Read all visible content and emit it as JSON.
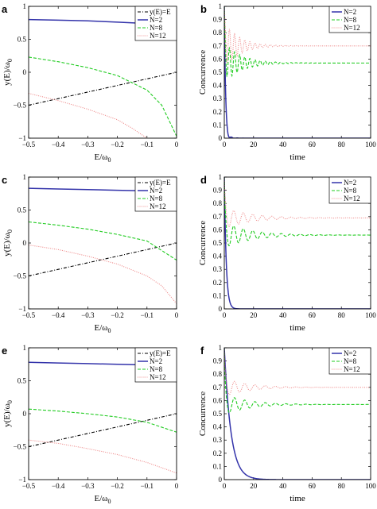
{
  "chart_data": [
    {
      "panel": "a",
      "type": "line",
      "xlabel": "E/ω",
      "xlabel_sub": "0",
      "ylabel": "y(E)/ω",
      "ylabel_sub": "0",
      "xlim": [
        -0.5,
        0
      ],
      "ylim": [
        -1,
        1
      ],
      "xticks": [
        -0.5,
        -0.4,
        -0.3,
        -0.2,
        -0.1,
        0
      ],
      "yticks": [
        -1,
        -0.5,
        0,
        0.5,
        1
      ],
      "xtick_labels": [
        "−0.5",
        "−0.4",
        "−0.3",
        "−0.2",
        "−0.1",
        "0"
      ],
      "ytick_labels": [
        "−1",
        "−0.5",
        "0",
        "0.5",
        "1"
      ],
      "legend_position": "top-right",
      "grid": false,
      "series": [
        {
          "name": "y(E)=E",
          "color": "#000000",
          "style": "dashdot",
          "x": [
            -0.5,
            0
          ],
          "y": [
            -0.5,
            0
          ]
        },
        {
          "name": "N=2",
          "color": "#3333aa",
          "style": "solid",
          "x": [
            -0.5,
            -0.4,
            -0.3,
            -0.2,
            -0.1,
            -0.05,
            0
          ],
          "y": [
            0.8,
            0.79,
            0.78,
            0.76,
            0.74,
            0.72,
            0.69
          ]
        },
        {
          "name": "N=8",
          "color": "#22cc22",
          "style": "dashed",
          "x": [
            -0.5,
            -0.4,
            -0.3,
            -0.2,
            -0.1,
            -0.05,
            0
          ],
          "y": [
            0.23,
            0.16,
            0.07,
            -0.05,
            -0.27,
            -0.5,
            -0.97
          ]
        },
        {
          "name": "N=12",
          "color": "#ee8888",
          "style": "dotted",
          "x": [
            -0.5,
            -0.4,
            -0.3,
            -0.2,
            -0.15,
            -0.1
          ],
          "y": [
            -0.32,
            -0.43,
            -0.56,
            -0.72,
            -0.85,
            -1.0
          ]
        }
      ]
    },
    {
      "panel": "b",
      "type": "line",
      "xlabel": "time",
      "ylabel": "Concurrence",
      "xlim": [
        0,
        100
      ],
      "ylim": [
        0,
        1
      ],
      "xticks": [
        0,
        20,
        40,
        60,
        80,
        100
      ],
      "yticks": [
        0,
        0.1,
        0.2,
        0.3,
        0.4,
        0.5,
        0.6,
        0.7,
        0.8,
        0.9,
        1
      ],
      "xtick_labels": [
        "0",
        "20",
        "40",
        "60",
        "80",
        "100"
      ],
      "ytick_labels": [
        "0",
        "0.1",
        "0.2",
        "0.3",
        "0.4",
        "0.5",
        "0.6",
        "0.7",
        "0.8",
        "0.9",
        "1"
      ],
      "legend_position": "top-right",
      "grid": false,
      "series": [
        {
          "name": "N=2",
          "color": "#3333aa",
          "style": "solid",
          "model": "decay",
          "start": 1.0,
          "level": 0,
          "tau": 0.8,
          "amp": 0.03,
          "period": 4,
          "damp": 3
        },
        {
          "name": "N=8",
          "color": "#22cc22",
          "style": "dashed",
          "model": "oscill",
          "start": 1.0,
          "level": 0.57,
          "amp": 0.15,
          "period": 3.5,
          "damp": 12
        },
        {
          "name": "N=12",
          "color": "#ee8888",
          "style": "dotted",
          "model": "oscill",
          "start": 1.0,
          "level": 0.7,
          "amp": 0.18,
          "period": 3.5,
          "damp": 10
        }
      ]
    },
    {
      "panel": "c",
      "type": "line",
      "xlabel": "E/ω",
      "xlabel_sub": "0",
      "ylabel": "y(E)/ω",
      "ylabel_sub": "0",
      "xlim": [
        -0.5,
        0
      ],
      "ylim": [
        -1,
        1
      ],
      "xticks": [
        -0.5,
        -0.4,
        -0.3,
        -0.2,
        -0.1,
        0
      ],
      "yticks": [
        -1,
        -0.5,
        0,
        0.5,
        1
      ],
      "xtick_labels": [
        "−0.5",
        "−0.4",
        "−0.3",
        "−0.2",
        "−0.1",
        "0"
      ],
      "ytick_labels": [
        "−1",
        "−0.5",
        "0",
        "0.5",
        "1"
      ],
      "legend_position": "top-right",
      "grid": false,
      "series": [
        {
          "name": "y(E)=E",
          "color": "#000000",
          "style": "dashdot",
          "x": [
            -0.5,
            0
          ],
          "y": [
            -0.5,
            0
          ]
        },
        {
          "name": "N=2",
          "color": "#3333aa",
          "style": "solid",
          "x": [
            -0.5,
            -0.4,
            -0.3,
            -0.2,
            -0.1,
            0
          ],
          "y": [
            0.83,
            0.82,
            0.81,
            0.8,
            0.79,
            0.77
          ]
        },
        {
          "name": "N=8",
          "color": "#22cc22",
          "style": "dashed",
          "x": [
            -0.5,
            -0.4,
            -0.3,
            -0.2,
            -0.1,
            0
          ],
          "y": [
            0.32,
            0.27,
            0.21,
            0.13,
            0.03,
            -0.26
          ]
        },
        {
          "name": "N=12",
          "color": "#ee8888",
          "style": "dotted",
          "x": [
            -0.5,
            -0.4,
            -0.3,
            -0.2,
            -0.1,
            -0.05,
            0
          ],
          "y": [
            -0.03,
            -0.1,
            -0.2,
            -0.32,
            -0.5,
            -0.65,
            -0.92
          ]
        }
      ]
    },
    {
      "panel": "d",
      "type": "line",
      "xlabel": "time",
      "ylabel": "Concurrence",
      "xlim": [
        0,
        100
      ],
      "ylim": [
        0,
        1
      ],
      "xticks": [
        0,
        20,
        40,
        60,
        80,
        100
      ],
      "yticks": [
        0,
        0.1,
        0.2,
        0.3,
        0.4,
        0.5,
        0.6,
        0.7,
        0.8,
        0.9,
        1
      ],
      "xtick_labels": [
        "0",
        "20",
        "40",
        "60",
        "80",
        "100"
      ],
      "ytick_labels": [
        "0",
        "0.1",
        "0.2",
        "0.3",
        "0.4",
        "0.5",
        "0.6",
        "0.7",
        "0.8",
        "0.9",
        "1"
      ],
      "legend_position": "top-right",
      "grid": false,
      "series": [
        {
          "name": "N=2",
          "color": "#3333aa",
          "style": "solid",
          "model": "decay",
          "start": 1.0,
          "level": 0,
          "tau": 1.3,
          "amp": 0,
          "period": 4,
          "damp": 3
        },
        {
          "name": "N=8",
          "color": "#22cc22",
          "style": "dashed",
          "model": "oscill",
          "start": 1.0,
          "level": 0.56,
          "amp": 0.1,
          "period": 6.5,
          "damp": 18
        },
        {
          "name": "N=12",
          "color": "#ee8888",
          "style": "dotted",
          "model": "oscill",
          "start": 1.0,
          "level": 0.69,
          "amp": 0.08,
          "period": 6.5,
          "damp": 18
        }
      ]
    },
    {
      "panel": "e",
      "type": "line",
      "xlabel": "E/ω",
      "xlabel_sub": "0",
      "ylabel": "y(E)/ω",
      "ylabel_sub": "0",
      "xlim": [
        -0.5,
        0
      ],
      "ylim": [
        -1,
        1
      ],
      "xticks": [
        -0.5,
        -0.4,
        -0.3,
        -0.2,
        -0.1,
        0
      ],
      "yticks": [
        -1,
        -0.5,
        0,
        0.5,
        1
      ],
      "xtick_labels": [
        "−0.5",
        "−0.4",
        "−0.3",
        "−0.2",
        "−0.1",
        "0"
      ],
      "ytick_labels": [
        "−1",
        "−0.5",
        "0",
        "0.5",
        "1"
      ],
      "legend_position": "top-right",
      "grid": false,
      "series": [
        {
          "name": "y(E)=E",
          "color": "#000000",
          "style": "dashdot",
          "x": [
            -0.5,
            0
          ],
          "y": [
            -0.5,
            0
          ]
        },
        {
          "name": "N=2",
          "color": "#3333aa",
          "style": "solid",
          "x": [
            -0.5,
            -0.4,
            -0.3,
            -0.2,
            -0.1,
            0
          ],
          "y": [
            0.78,
            0.77,
            0.76,
            0.75,
            0.74,
            0.72
          ]
        },
        {
          "name": "N=8",
          "color": "#22cc22",
          "style": "dashed",
          "x": [
            -0.5,
            -0.4,
            -0.3,
            -0.2,
            -0.1,
            0
          ],
          "y": [
            0.07,
            0.04,
            0.0,
            -0.05,
            -0.13,
            -0.28
          ]
        },
        {
          "name": "N=12",
          "color": "#ee8888",
          "style": "dotted",
          "x": [
            -0.5,
            -0.4,
            -0.3,
            -0.2,
            -0.1,
            0
          ],
          "y": [
            -0.4,
            -0.45,
            -0.53,
            -0.62,
            -0.74,
            -0.9
          ]
        }
      ]
    },
    {
      "panel": "f",
      "type": "line",
      "xlabel": "time",
      "ylabel": "Concurrence",
      "xlim": [
        0,
        100
      ],
      "ylim": [
        0,
        1
      ],
      "xticks": [
        0,
        20,
        40,
        60,
        80,
        100
      ],
      "yticks": [
        0,
        0.1,
        0.2,
        0.3,
        0.4,
        0.5,
        0.6,
        0.7,
        0.8,
        0.9,
        1
      ],
      "xtick_labels": [
        "0",
        "20",
        "40",
        "60",
        "80",
        "100"
      ],
      "ytick_labels": [
        "0",
        "0.1",
        "0.2",
        "0.3",
        "0.4",
        "0.5",
        "0.6",
        "0.7",
        "0.8",
        "0.9",
        "1"
      ],
      "legend_position": "top-right",
      "grid": false,
      "series": [
        {
          "name": "N=2",
          "color": "#3333aa",
          "style": "solid",
          "model": "decay",
          "start": 1.0,
          "level": 0,
          "tau": 4.5,
          "amp": 0,
          "period": 4,
          "damp": 3
        },
        {
          "name": "N=8",
          "color": "#22cc22",
          "style": "dashed",
          "model": "oscill",
          "start": 1.0,
          "level": 0.57,
          "amp": 0.08,
          "period": 7,
          "damp": 16
        },
        {
          "name": "N=12",
          "color": "#ee8888",
          "style": "dotted",
          "model": "oscill",
          "start": 1.0,
          "level": 0.7,
          "amp": 0.07,
          "period": 7,
          "damp": 16
        }
      ]
    }
  ]
}
